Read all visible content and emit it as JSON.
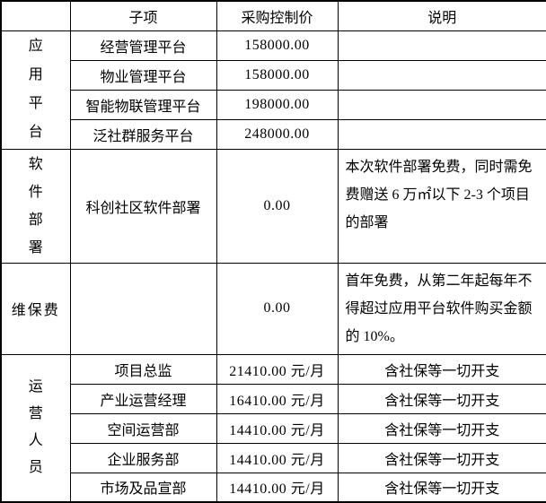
{
  "table": {
    "headers": {
      "category": "",
      "sub_item": "子项",
      "control_price": "采购控制价",
      "note": "说明"
    },
    "sections": [
      {
        "category": "应用平台",
        "rows": [
          {
            "sub": "经营管理平台",
            "price": "158000.00",
            "note": ""
          },
          {
            "sub": "物业管理平台",
            "price": "158000.00",
            "note": ""
          },
          {
            "sub": "智能物联管理平台",
            "price": "198000.00",
            "note": ""
          },
          {
            "sub": "泛社群服务平台",
            "price": "248000.00",
            "note": ""
          }
        ]
      },
      {
        "category": "软件部署",
        "rows": [
          {
            "sub": "科创社区软件部署",
            "price": "0.00",
            "note": "本次软件部署免费，同时需免费赠送 6 万㎡以下 2-3 个项目的部署"
          }
        ]
      },
      {
        "category": "维保费",
        "rows": [
          {
            "sub": "",
            "price": "0.00",
            "note": "首年免费，从第二年起每年不得超过应用平台软件购买金额的 10%。"
          }
        ]
      },
      {
        "category": "运营人员",
        "rows": [
          {
            "sub": "项目总监",
            "price": "21410.00 元/月",
            "note": "含社保等一切开支"
          },
          {
            "sub": "产业运营经理",
            "price": "16410.00 元/月",
            "note": "含社保等一切开支"
          },
          {
            "sub": "空间运营部",
            "price": "14410.00 元/月",
            "note": "含社保等一切开支"
          },
          {
            "sub": "企业服务部",
            "price": "14410.00 元/月",
            "note": "含社保等一切开支"
          },
          {
            "sub": "市场及品宣部",
            "price": "14410.00 元/月",
            "note": "含社保等一切开支"
          }
        ]
      }
    ]
  }
}
